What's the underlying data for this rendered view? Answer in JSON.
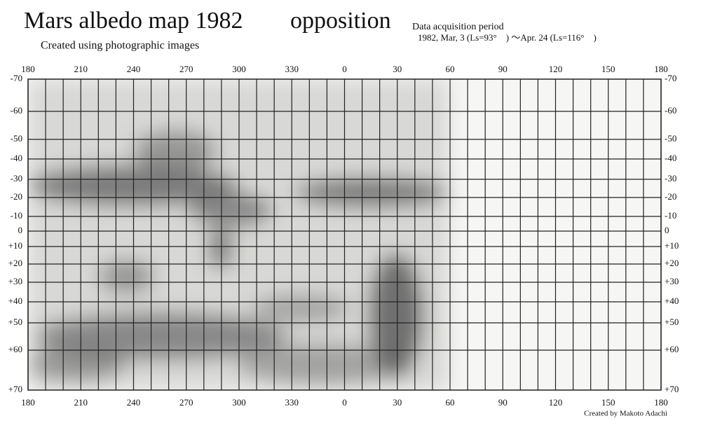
{
  "header": {
    "title": "Mars albedo map 1982",
    "title_suffix": "opposition",
    "subtitle": "Created using photographic images",
    "acquisition": {
      "heading": "Data acquisition period",
      "period": "1982, Mar, 3 (Ls=93°　) ～Apr. 24 (Ls=116°　)"
    }
  },
  "map": {
    "longitude_labels": [
      "180",
      "210",
      "240",
      "270",
      "300",
      "330",
      "0",
      "30",
      "60",
      "90",
      "120",
      "150",
      "180"
    ],
    "latitude_labels": [
      "-70",
      "-60",
      "-50",
      "-40",
      "-30",
      "-20",
      "-10",
      "0",
      "+10",
      "+20",
      "+30",
      "+40",
      "+50",
      "+60",
      "+70"
    ]
  },
  "footer": {
    "credit": "Created by Makoto Adachi"
  }
}
